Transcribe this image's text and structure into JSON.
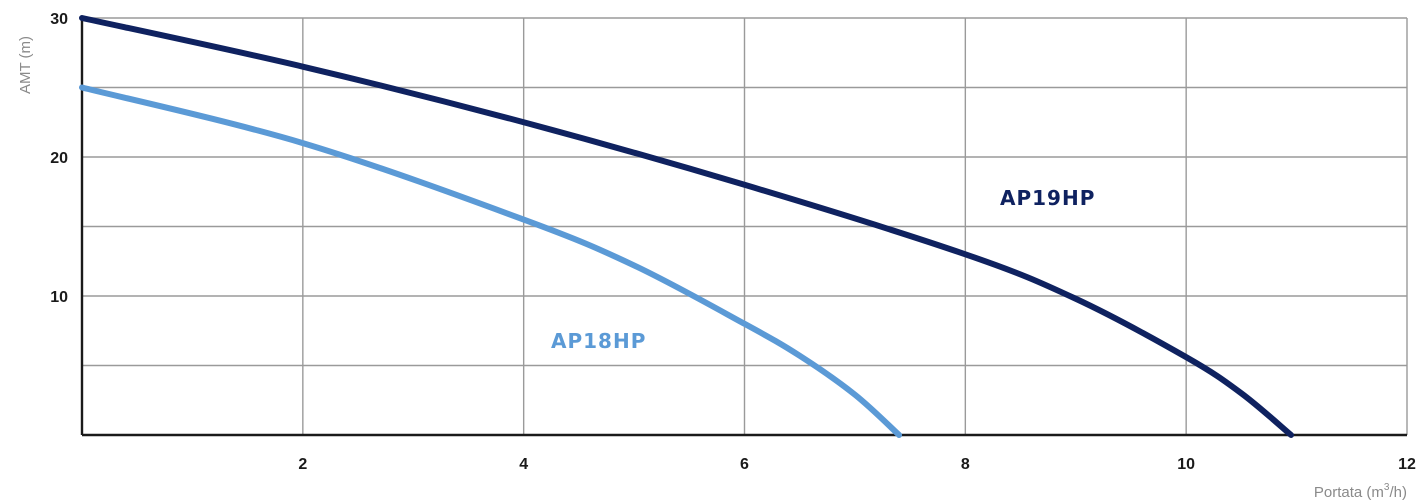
{
  "chart_data": {
    "type": "line",
    "xlabel": "Portata (m",
    "xlabel_sup": "3",
    "xlabel_suffix": "/h)",
    "ylabel": "AMT (m)",
    "xlim": [
      0,
      12
    ],
    "ylim": [
      0,
      30
    ],
    "x_ticks": [
      2,
      4,
      6,
      8,
      10,
      12
    ],
    "x_tick_labels": [
      "2",
      "4",
      "6",
      "8",
      "10",
      "12"
    ],
    "y_ticks": [
      10,
      20,
      30
    ],
    "y_tick_labels": [
      "10",
      "20",
      "30"
    ],
    "grid": true,
    "series": [
      {
        "name": "AP19HP",
        "color": "#0f2260",
        "x": [
          0,
          2,
          4,
          6,
          8,
          9,
          10,
          10.5,
          10.95
        ],
        "y": [
          30,
          26.5,
          22.5,
          18,
          13,
          9.8,
          5.6,
          3.0,
          0
        ]
      },
      {
        "name": "AP18HP",
        "color": "#5b9ad6",
        "x": [
          0,
          2,
          4,
          5,
          6,
          6.5,
          7,
          7.4
        ],
        "y": [
          25,
          21,
          15.5,
          12.2,
          8,
          5.7,
          2.9,
          0
        ]
      }
    ]
  }
}
